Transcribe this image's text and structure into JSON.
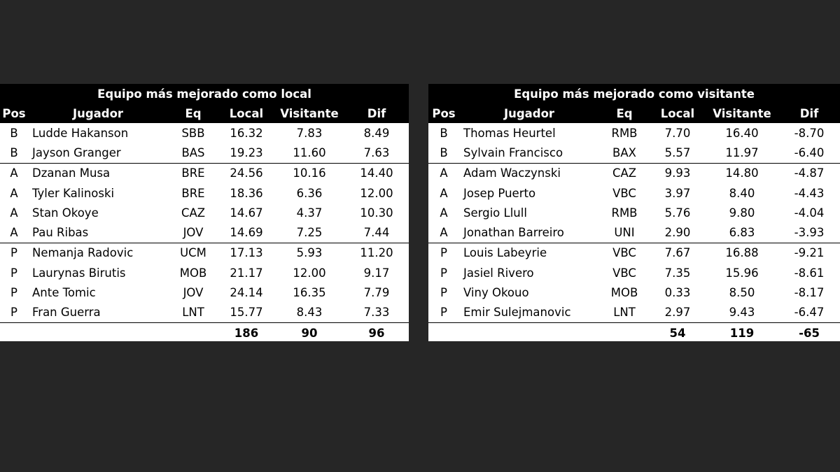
{
  "left": {
    "title": "Equipo más mejorado como local",
    "headers": [
      "Pos",
      "Jugador",
      "Eq",
      "Local",
      "Visitante",
      "Dif"
    ],
    "rows": [
      [
        "B",
        "Ludde Hakanson",
        "SBB",
        "16.32",
        "7.83",
        "8.49"
      ],
      [
        "B",
        "Jayson Granger",
        "BAS",
        "19.23",
        "11.60",
        "7.63"
      ],
      [
        "A",
        "Dzanan Musa",
        "BRE",
        "24.56",
        "10.16",
        "14.40"
      ],
      [
        "A",
        "Tyler Kalinoski",
        "BRE",
        "18.36",
        "6.36",
        "12.00"
      ],
      [
        "A",
        "Stan Okoye",
        "CAZ",
        "14.67",
        "4.37",
        "10.30"
      ],
      [
        "A",
        "Pau Ribas",
        "JOV",
        "14.69",
        "7.25",
        "7.44"
      ],
      [
        "P",
        "Nemanja Radovic",
        "UCM",
        "17.13",
        "5.93",
        "11.20"
      ],
      [
        "P",
        "Laurynas Birutis",
        "MOB",
        "21.17",
        "12.00",
        "9.17"
      ],
      [
        "P",
        "Ante Tomic",
        "JOV",
        "24.14",
        "16.35",
        "7.79"
      ],
      [
        "P",
        "Fran Guerra",
        "LNT",
        "15.77",
        "8.43",
        "7.33"
      ]
    ],
    "totals": {
      "local": "186",
      "visitante": "90",
      "dif": "96"
    }
  },
  "right": {
    "title": "Equipo más mejorado como visitante",
    "headers": [
      "Pos",
      "Jugador",
      "Eq",
      "Local",
      "Visitante",
      "Dif"
    ],
    "rows": [
      [
        "B",
        "Thomas Heurtel",
        "RMB",
        "7.70",
        "16.40",
        "-8.70"
      ],
      [
        "B",
        "Sylvain Francisco",
        "BAX",
        "5.57",
        "11.97",
        "-6.40"
      ],
      [
        "A",
        "Adam Waczynski",
        "CAZ",
        "9.93",
        "14.80",
        "-4.87"
      ],
      [
        "A",
        "Josep Puerto",
        "VBC",
        "3.97",
        "8.40",
        "-4.43"
      ],
      [
        "A",
        "Sergio Llull",
        "RMB",
        "5.76",
        "9.80",
        "-4.04"
      ],
      [
        "A",
        "Jonathan Barreiro",
        "UNI",
        "2.90",
        "6.83",
        "-3.93"
      ],
      [
        "P",
        "Louis Labeyrie",
        "VBC",
        "7.67",
        "16.88",
        "-9.21"
      ],
      [
        "P",
        "Jasiel Rivero",
        "VBC",
        "7.35",
        "15.96",
        "-8.61"
      ],
      [
        "P",
        "Viny Okouo",
        "MOB",
        "0.33",
        "8.50",
        "-8.17"
      ],
      [
        "P",
        "Emir Sulejmanovic",
        "LNT",
        "2.97",
        "9.43",
        "-6.47"
      ]
    ],
    "totals": {
      "local": "54",
      "visitante": "119",
      "dif": "-65"
    }
  }
}
